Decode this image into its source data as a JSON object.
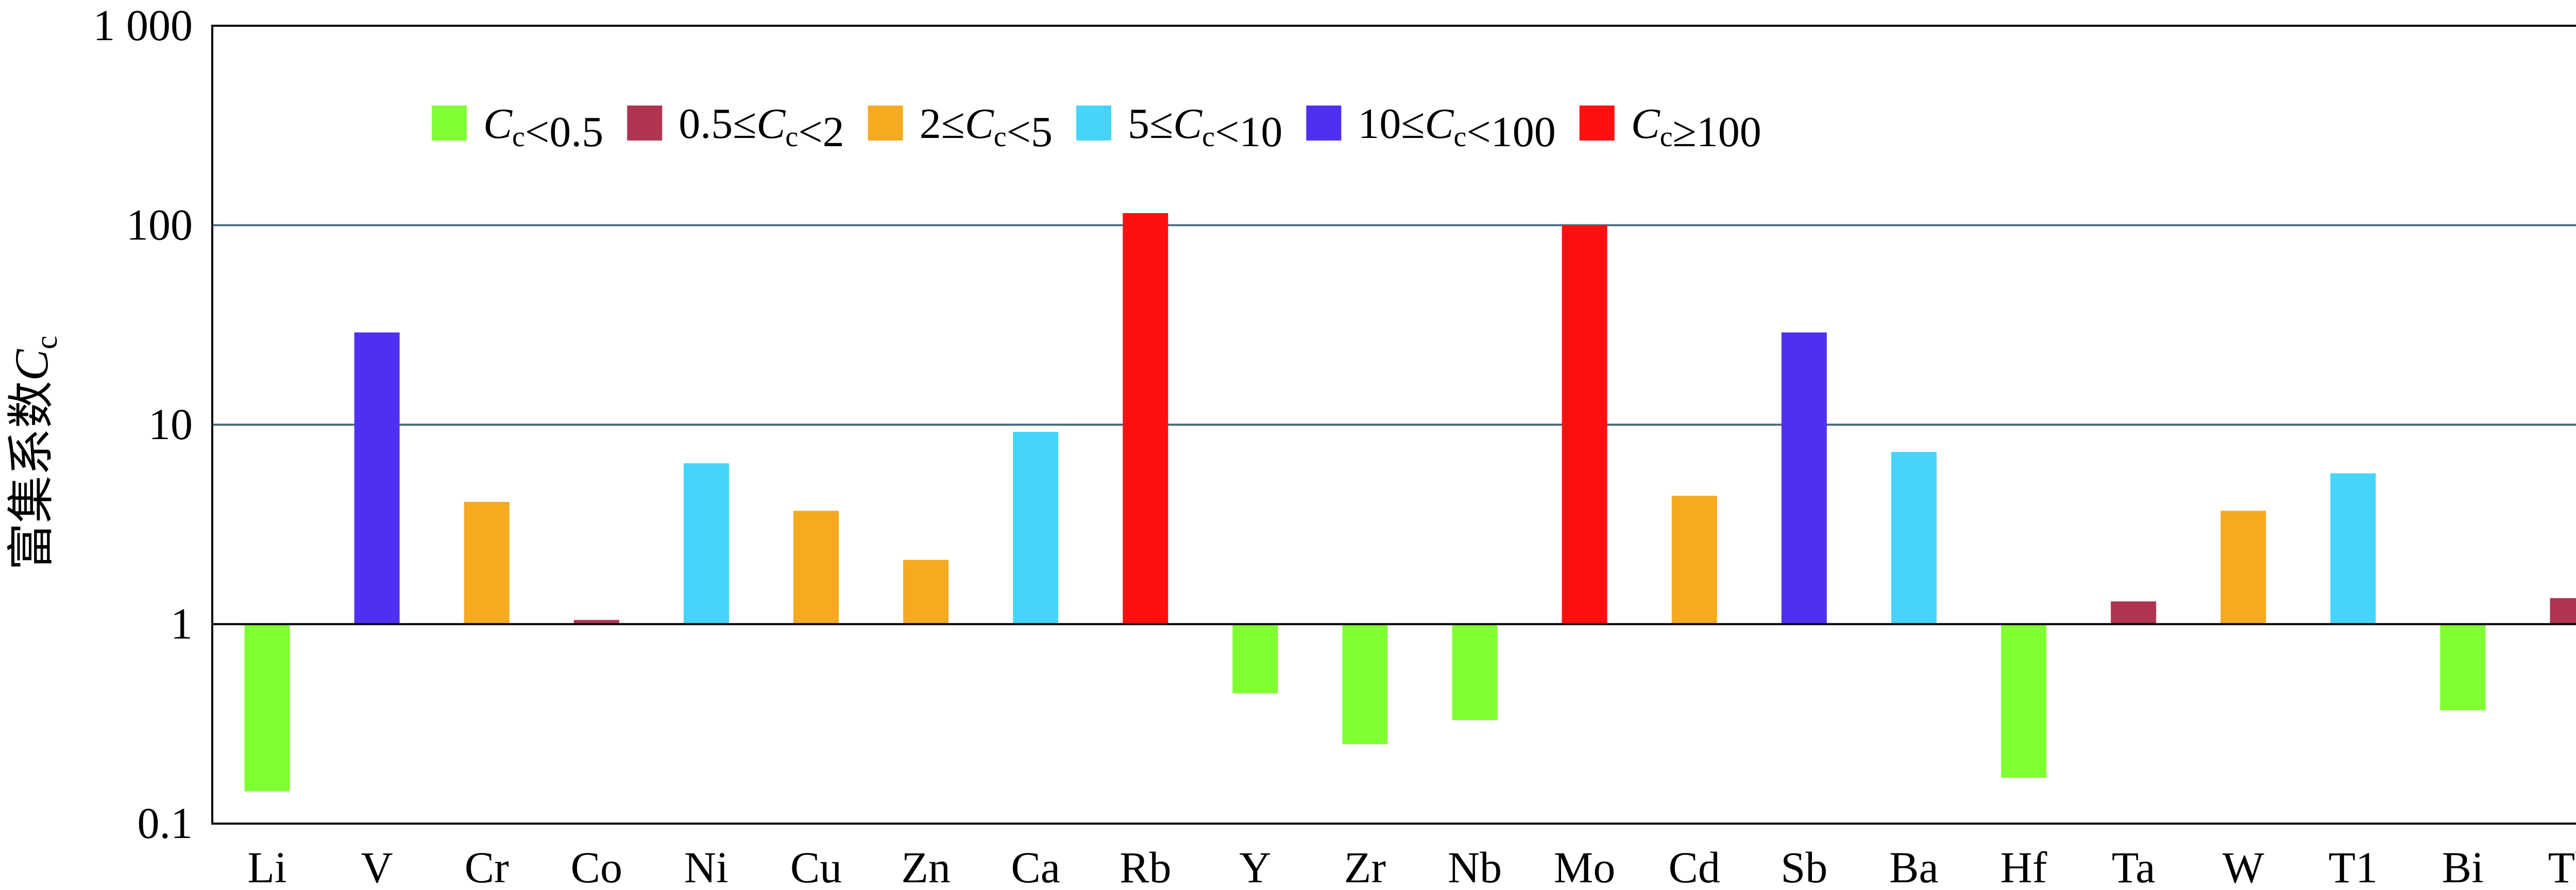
{
  "chart_data": {
    "type": "bar",
    "title": "",
    "xlabel": "",
    "ylabel": {
      "prefix": "富集系数",
      "symbol": "C",
      "subscript": "c"
    },
    "yscale": "log",
    "baseline": 1,
    "ylim": [
      0.1,
      1000
    ],
    "yticks": [
      0.1,
      1,
      10,
      100,
      1000
    ],
    "ytick_labels": [
      "0.1",
      "1",
      "10",
      "100",
      "1 000"
    ],
    "grid": "horizontal at 10 and 100",
    "legend_placement": "top",
    "categories": [
      "Li",
      "V",
      "Cr",
      "Co",
      "Ni",
      "Cu",
      "Zn",
      "Ca",
      "Rb",
      "Y",
      "Zr",
      "Nb",
      "Mo",
      "Cd",
      "Sb",
      "Ba",
      "Hf",
      "Ta",
      "W",
      "T1",
      "Bi",
      "Th"
    ],
    "values": [
      0.145,
      29,
      4.1,
      1.05,
      6.4,
      3.7,
      2.1,
      9.2,
      115,
      0.45,
      0.25,
      0.33,
      100,
      4.4,
      29,
      7.3,
      0.17,
      1.3,
      3.7,
      5.7,
      0.37,
      1.35
    ],
    "legend": [
      {
        "key": "lt05",
        "color": "#80ff33",
        "parts": [
          {
            "t": "C",
            "i": true
          },
          {
            "t": "c",
            "sub": true
          },
          {
            "t": "<0.5"
          }
        ]
      },
      {
        "key": "05to2",
        "color": "#b03550",
        "parts": [
          {
            "t": "0.5≤"
          },
          {
            "t": "C",
            "i": true
          },
          {
            "t": "c",
            "sub": true
          },
          {
            "t": "<2"
          }
        ]
      },
      {
        "key": "2to5",
        "color": "#f5aa20",
        "parts": [
          {
            "t": "2≤"
          },
          {
            "t": "C",
            "i": true
          },
          {
            "t": "c",
            "sub": true
          },
          {
            "t": "<5"
          }
        ]
      },
      {
        "key": "5to10",
        "color": "#45d5f8",
        "parts": [
          {
            "t": "5≤"
          },
          {
            "t": "C",
            "i": true
          },
          {
            "t": "c",
            "sub": true
          },
          {
            "t": "<10"
          }
        ]
      },
      {
        "key": "10to100",
        "color": "#5030f0",
        "parts": [
          {
            "t": "10≤"
          },
          {
            "t": "C",
            "i": true
          },
          {
            "t": "c",
            "sub": true
          },
          {
            "t": "<100"
          }
        ]
      },
      {
        "key": "ge100",
        "color": "#ff1010",
        "parts": [
          {
            "t": "C",
            "i": true
          },
          {
            "t": "c",
            "sub": true
          },
          {
            "t": "≥100"
          }
        ]
      }
    ]
  }
}
